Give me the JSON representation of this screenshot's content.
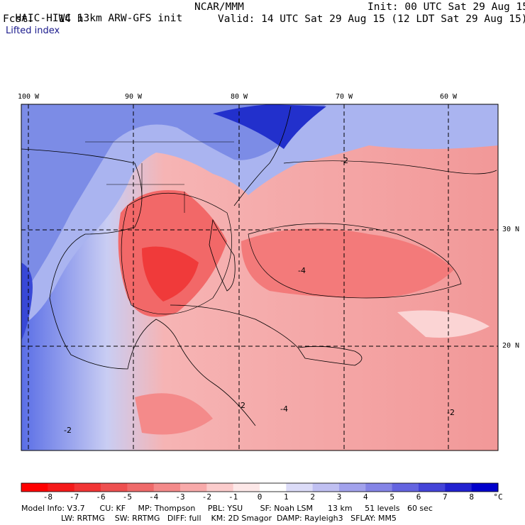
{
  "header": {
    "model_title": "HAIC-HIWC 13km ARW-GFS init",
    "org": "NCAR/MMM",
    "init": "Init: 00 UTC Sat 29 Aug 15",
    "fcst": "Fcst:    14 h",
    "valid": "Valid: 14 UTC Sat 29 Aug 15 (12 LDT Sat 29 Aug 15)",
    "field": "Lifted index"
  },
  "map": {
    "longitude_labels": [
      "100 W",
      "90 W",
      "80 W",
      "70 W",
      "60 W"
    ],
    "latitude_labels": [
      "30 N",
      "20 N"
    ],
    "contour_labels": [
      "-2",
      "-4",
      "-2",
      "-2",
      "-4",
      "-2"
    ],
    "region": "Gulf of Mexico, Caribbean and western Atlantic"
  },
  "colorbar": {
    "unit": "°C",
    "tick_labels": [
      "-8",
      "-7",
      "-6",
      "-5",
      "-4",
      "-3",
      "-2",
      "-1",
      "0",
      "1",
      "2",
      "3",
      "4",
      "5",
      "6",
      "7",
      "8"
    ],
    "colors": [
      "#ff0000",
      "#f51a1a",
      "#f23535",
      "#ee5050",
      "#ef6a6a",
      "#f48a8a",
      "#f8aaaa",
      "#fbcccc",
      "#fde8e8",
      "#ffffff",
      "#dcdcf8",
      "#c0c0f2",
      "#a2a2ec",
      "#8484e6",
      "#6464e0",
      "#4444d8",
      "#2222d0",
      "#0000cc"
    ]
  },
  "footer": {
    "line1": "Model Info: V3.7      CU: KF     MP: Thompson     PBL: YSU       SF: Noah LSM      13 km     51 levels   60 sec",
    "line2": "                LW: RRTMG    SW: RRTMG   DIFF: full    KM: 2D Smagor  DAMP: Rayleigh3   SFLAY: MM5"
  }
}
